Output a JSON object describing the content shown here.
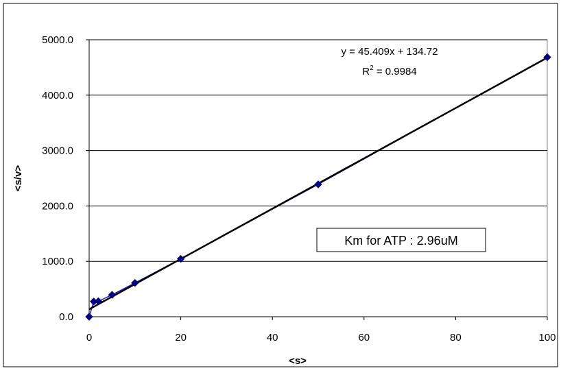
{
  "chart_data": {
    "type": "scatter",
    "title": "",
    "xlabel": "<s>",
    "ylabel": "<s/v>",
    "xlim": [
      0,
      100
    ],
    "ylim": [
      0,
      5000
    ],
    "x_ticks": [
      "0",
      "20",
      "40",
      "60",
      "80",
      "100"
    ],
    "y_ticks": [
      "0.0",
      "1000.0",
      "2000.0",
      "3000.0",
      "4000.0",
      "5000.0"
    ],
    "grid": "horizontal",
    "legend": "none",
    "series": [
      {
        "points": [
          {
            "x": 0,
            "y": 0
          },
          {
            "x": 1,
            "y": 275
          },
          {
            "x": 2,
            "y": 280
          },
          {
            "x": 5,
            "y": 395
          },
          {
            "x": 10,
            "y": 610
          },
          {
            "x": 20,
            "y": 1045
          },
          {
            "x": 50,
            "y": 2390
          },
          {
            "x": 100,
            "y": 4685
          }
        ],
        "color": "#000080"
      }
    ],
    "trendline": {
      "slope": 45.409,
      "intercept": 134.72,
      "equation": "y = 45.409x + 134.72",
      "r2_prefix": "R",
      "r2_exp": "2",
      "r2_value": " = 0.9984",
      "color": "#000000"
    },
    "annotation_box": "Km for ATP : 2.96uM"
  }
}
